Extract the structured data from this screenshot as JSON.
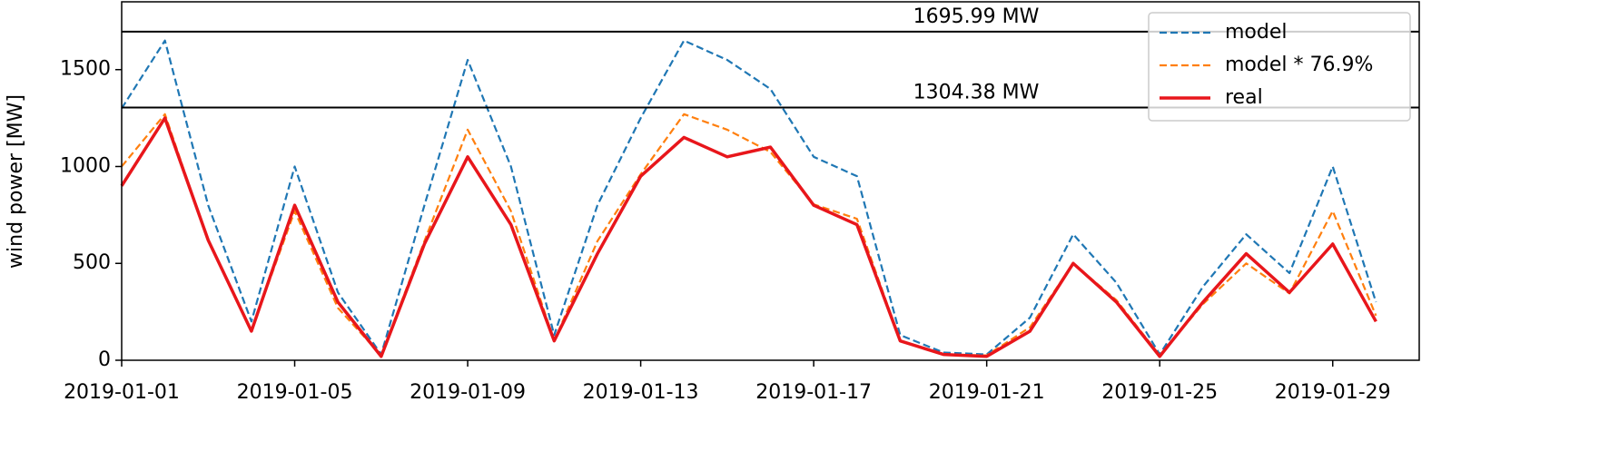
{
  "chart_data": {
    "type": "line",
    "ylabel": "wind power [MW]",
    "x": [
      "2019-01-01",
      "2019-01-02",
      "2019-01-03",
      "2019-01-04",
      "2019-01-05",
      "2019-01-06",
      "2019-01-07",
      "2019-01-08",
      "2019-01-09",
      "2019-01-10",
      "2019-01-11",
      "2019-01-12",
      "2019-01-13",
      "2019-01-14",
      "2019-01-15",
      "2019-01-16",
      "2019-01-17",
      "2019-01-18",
      "2019-01-19",
      "2019-01-20",
      "2019-01-21",
      "2019-01-22",
      "2019-01-23",
      "2019-01-24",
      "2019-01-25",
      "2019-01-26",
      "2019-01-27",
      "2019-01-28",
      "2019-01-29",
      "2019-01-30"
    ],
    "series": [
      {
        "name": "model",
        "color": "#1f77b4",
        "dash": true,
        "values": [
          1300,
          1650,
          800,
          200,
          1000,
          350,
          30,
          800,
          1550,
          1000,
          130,
          800,
          1250,
          1650,
          1550,
          1400,
          1050,
          950,
          130,
          40,
          30,
          220,
          650,
          400,
          30,
          380,
          650,
          450,
          1000,
          300
        ]
      },
      {
        "name": "model * 76.9%",
        "color": "#ff7f0e",
        "dash": true,
        "values": [
          1000,
          1270,
          615,
          155,
          770,
          270,
          25,
          615,
          1190,
          770,
          100,
          615,
          960,
          1270,
          1190,
          1075,
          805,
          730,
          100,
          30,
          25,
          170,
          500,
          310,
          25,
          290,
          500,
          345,
          770,
          230
        ]
      },
      {
        "name": "real",
        "color": "#e8161b",
        "dash": false,
        "values": [
          900,
          1250,
          620,
          150,
          800,
          300,
          20,
          600,
          1050,
          700,
          100,
          550,
          950,
          1150,
          1050,
          1100,
          800,
          700,
          100,
          30,
          20,
          150,
          500,
          300,
          20,
          300,
          550,
          350,
          600,
          200
        ]
      }
    ],
    "hlines": [
      {
        "value": 1695.99,
        "label": "1695.99 MW"
      },
      {
        "value": 1304.38,
        "label": "1304.38 MW"
      }
    ],
    "xlim": [
      "2019-01-01",
      "2019-01-31"
    ],
    "xticks": [
      "2019-01-01",
      "2019-01-05",
      "2019-01-09",
      "2019-01-13",
      "2019-01-17",
      "2019-01-21",
      "2019-01-25",
      "2019-01-29"
    ],
    "ylim": [
      0,
      1850
    ],
    "yticks": [
      0,
      500,
      1000,
      1500
    ],
    "legend": "upper right"
  }
}
